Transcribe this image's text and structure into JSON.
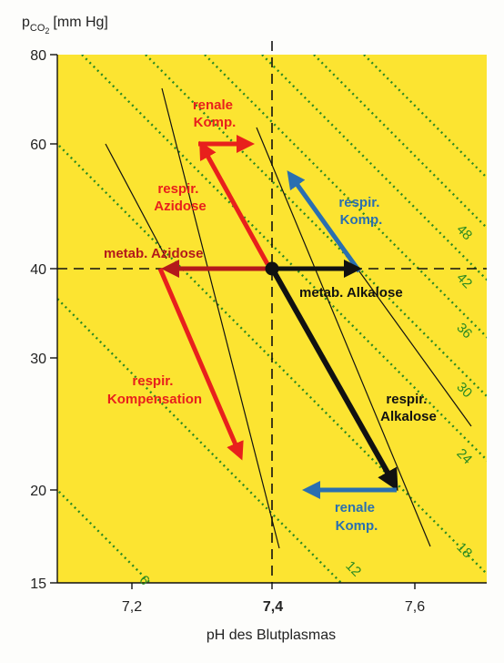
{
  "y_axis_label": {
    "main": "p",
    "sub": "CO",
    "sub2": "2",
    "unit": "[mm Hg]"
  },
  "x_axis_label": "pH des Blutplasmas",
  "y_ticks": [
    "80",
    "60",
    "40",
    "30",
    "20",
    "15"
  ],
  "x_ticks": [
    "7,2",
    "7,4",
    "7,6"
  ],
  "isolines": [
    "6",
    "12",
    "18",
    "24",
    "30",
    "36",
    "42",
    "48"
  ],
  "labels": {
    "renale_komp_top": [
      "renale",
      "Komp."
    ],
    "respir_azidose": [
      "respir.",
      "Azidose"
    ],
    "respir_komp_right": [
      "respir.",
      "Komp."
    ],
    "metab_azidose": "metab. Azidose",
    "metab_alkalose": "metab. Alkalose",
    "respir_kompensation": [
      "respir.",
      "Kompensation"
    ],
    "respir_alkalose": [
      "respir.",
      "Alkalose"
    ],
    "renale_komp_bottom": [
      "renale",
      "Komp."
    ]
  },
  "colors": {
    "background": "#fce431",
    "isoline": "#2a8a22",
    "red": "#e8201c",
    "dark_red": "#b3191b",
    "blue": "#2a6fb0",
    "black": "#111111"
  }
}
